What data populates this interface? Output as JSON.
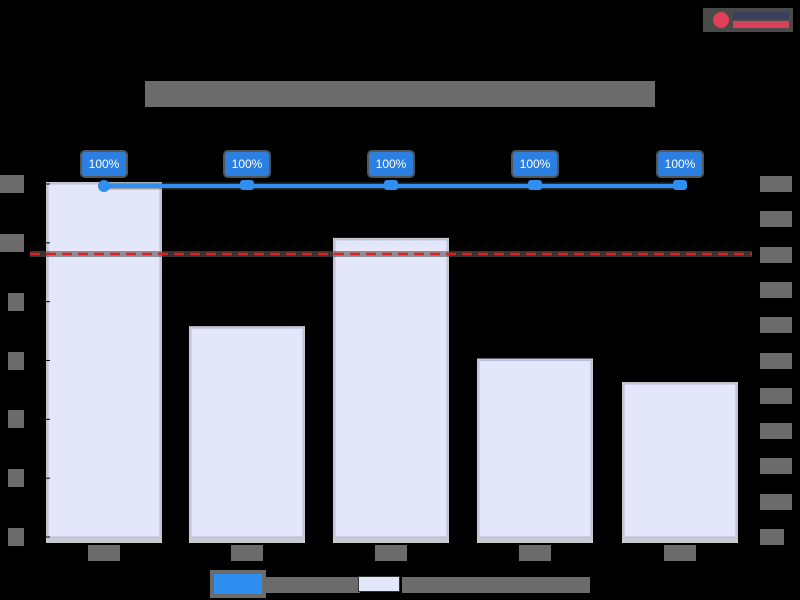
{
  "chart_data": {
    "type": "bar",
    "title": "[masked chart title]",
    "categories": [
      "[cat 1]",
      "[cat 2]",
      "[cat 3]",
      "[cat 4]",
      "[cat 5]"
    ],
    "series": [
      {
        "name": "[bar series - masked]",
        "type": "bar",
        "axis": "left",
        "color": "#e4e6fa",
        "values": [
          12,
          7.1,
          10.1,
          6.0,
          5.2
        ]
      },
      {
        "name": "[line series - masked]",
        "type": "line",
        "axis": "right",
        "color": "#2f8ff0",
        "values": [
          100,
          100,
          100,
          100,
          100
        ],
        "data_labels": [
          "100%",
          "100%",
          "100%",
          "100%",
          "100%"
        ]
      }
    ],
    "reference_line": {
      "axis": "right",
      "value": 80,
      "color": "#e02020",
      "style": "dashed"
    },
    "left_axis": {
      "ylim": [
        0,
        12
      ],
      "ticks": [
        0,
        2,
        4,
        6,
        8,
        10,
        12
      ],
      "labels_masked": true
    },
    "right_axis": {
      "ylim": [
        0,
        100
      ],
      "ticks": [
        0,
        10,
        20,
        30,
        40,
        50,
        60,
        70,
        80,
        90,
        100
      ],
      "unit": "%",
      "labels_masked": true
    },
    "xlabel": "",
    "ylabel": "",
    "legend_position": "bottom",
    "grid": false
  },
  "ui": {
    "title": "■■■■■■■■■■■■■■■■■■■■■■■■■■■■■■■■■■■■■■■■■■■",
    "left_ticks": [
      "■■",
      "■■",
      "■",
      "■",
      "■",
      "■",
      "■"
    ],
    "right_ticks": [
      "■■■■",
      "■■■",
      "■■■",
      "■■■",
      "■■■",
      "■■■",
      "■■■",
      "■■■",
      "■■■",
      "■■■",
      "■■"
    ],
    "x_labels": [
      "■■■",
      "■■■",
      "■■■",
      "■■■",
      "■■■"
    ],
    "data_labels": [
      "100%",
      "100%",
      "100%",
      "100%",
      "100%"
    ],
    "legend": {
      "line_label": "■■■■■■■■■",
      "bar_label": "■■■■■■■■■■■■■■■■■■"
    }
  }
}
